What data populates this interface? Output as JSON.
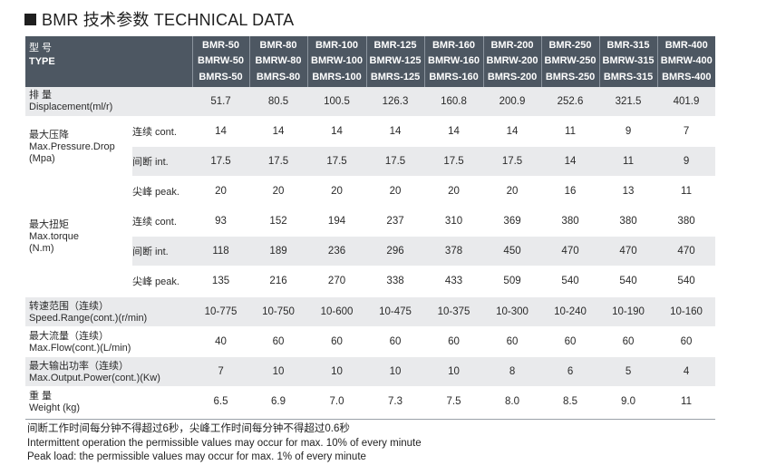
{
  "title": "BMR 技术参数 TECHNICAL DATA",
  "type_label_cn": "型  号",
  "type_label_en": "TYPE",
  "models": [
    [
      "BMR-50",
      "BMRW-50",
      "BMRS-50"
    ],
    [
      "BMR-80",
      "BMRW-80",
      "BMRS-80"
    ],
    [
      "BMR-100",
      "BMRW-100",
      "BMRS-100"
    ],
    [
      "BMR-125",
      "BMRW-125",
      "BMRS-125"
    ],
    [
      "BMR-160",
      "BMRW-160",
      "BMRS-160"
    ],
    [
      "BMR-200",
      "BMRW-200",
      "BMRS-200"
    ],
    [
      "BMR-250",
      "BMRW-250",
      "BMRS-250"
    ],
    [
      "BMR-315",
      "BMRW-315",
      "BMRS-315"
    ],
    [
      "BMR-400",
      "BMRW-400",
      "BMRS-400"
    ]
  ],
  "rows": {
    "displacement": {
      "cn": "排  量",
      "en": "Displacement(ml/r)",
      "values": [
        "51.7",
        "80.5",
        "100.5",
        "126.3",
        "160.8",
        "200.9",
        "252.6",
        "321.5",
        "401.9"
      ]
    },
    "pressure": {
      "cn": "最大压降",
      "en1": "Max.Pressure.Drop",
      "en2": "(Mpa)",
      "cont": {
        "label": "连续 cont.",
        "values": [
          "14",
          "14",
          "14",
          "14",
          "14",
          "14",
          "11",
          "9",
          "7"
        ]
      },
      "int": {
        "label": "间断 int.",
        "values": [
          "17.5",
          "17.5",
          "17.5",
          "17.5",
          "17.5",
          "17.5",
          "14",
          "11",
          "9"
        ]
      },
      "peak": {
        "label": "尖峰 peak.",
        "values": [
          "20",
          "20",
          "20",
          "20",
          "20",
          "20",
          "16",
          "13",
          "11"
        ]
      }
    },
    "torque": {
      "cn": "最大扭矩",
      "en1": "Max.torque",
      "en2": "(N.m)",
      "cont": {
        "label": "连续 cont.",
        "values": [
          "93",
          "152",
          "194",
          "237",
          "310",
          "369",
          "380",
          "380",
          "380"
        ]
      },
      "int": {
        "label": "间断 int.",
        "values": [
          "118",
          "189",
          "236",
          "296",
          "378",
          "450",
          "470",
          "470",
          "470"
        ]
      },
      "peak": {
        "label": "尖峰 peak.",
        "values": [
          "135",
          "216",
          "270",
          "338",
          "433",
          "509",
          "540",
          "540",
          "540"
        ]
      }
    },
    "speed": {
      "cn": "转速范围（连续）",
      "en": "Speed.Range(cont.)(r/min)",
      "values": [
        "10-775",
        "10-750",
        "10-600",
        "10-475",
        "10-375",
        "10-300",
        "10-240",
        "10-190",
        "10-160"
      ]
    },
    "flow": {
      "cn": "最大流量（连续）",
      "en": "Max.Flow(cont.)(L/min)",
      "values": [
        "40",
        "60",
        "60",
        "60",
        "60",
        "60",
        "60",
        "60",
        "60"
      ]
    },
    "power": {
      "cn": "最大输出功率（连续）",
      "en": "Max.Output.Power(cont.)(Kw)",
      "values": [
        "7",
        "10",
        "10",
        "10",
        "10",
        "8",
        "6",
        "5",
        "4"
      ]
    },
    "weight": {
      "cn": "重  量",
      "en": "Weight (kg)",
      "values": [
        "6.5",
        "6.9",
        "7.0",
        "7.3",
        "7.5",
        "8.0",
        "8.5",
        "9.0",
        "11"
      ]
    }
  },
  "notes": [
    "间断工作时间每分钟不得超过6秒，尖峰工作时间每分钟不得超过0.6秒",
    "Intermittent operation the permissible values may occur for max. 10% of every minute",
    "Peak load: the permissible values may occur for max. 1% of every minute"
  ]
}
